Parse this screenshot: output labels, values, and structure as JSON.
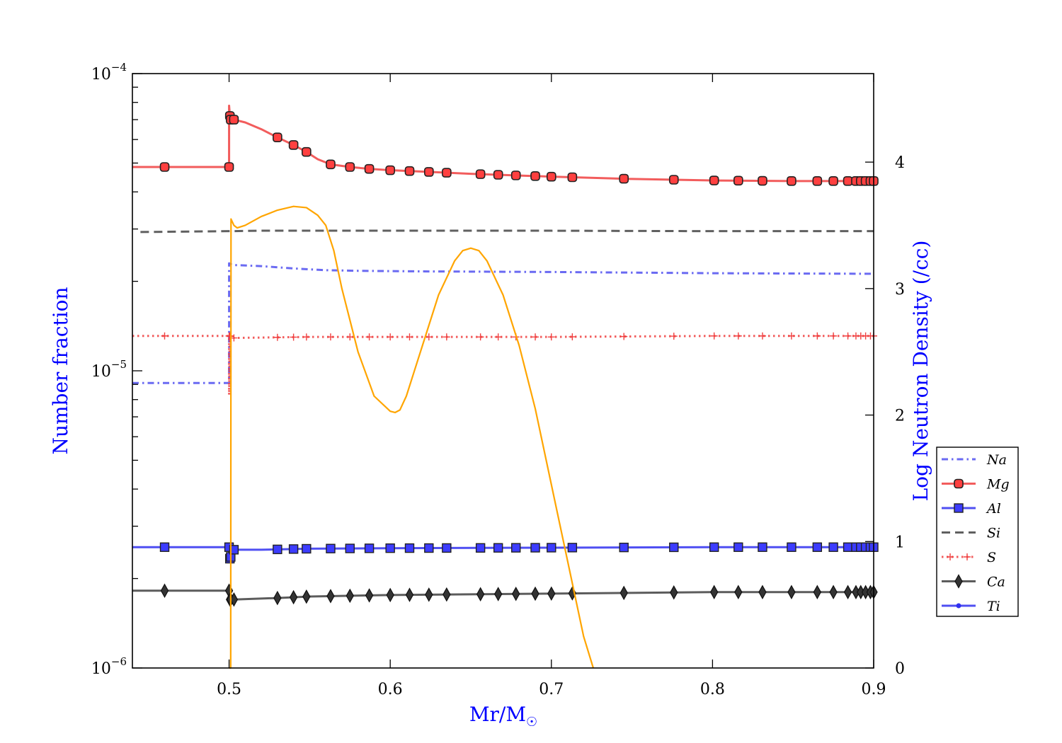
{
  "chart_data": {
    "type": "line",
    "xlabel": "Mr/M",
    "xlabel_symbol": "☉",
    "ylabel_left": "Number fraction",
    "ylabel_right": "Log Neutron Density (/cc)",
    "axis_label_color": "#0000ff",
    "xlim": [
      0.44,
      0.9
    ],
    "ylim_left": [
      1e-06,
      0.0001
    ],
    "yscale_left": "log",
    "ylim_right": [
      0,
      4.7
    ],
    "xticks": [
      0.5,
      0.6,
      0.7,
      0.8,
      0.9
    ],
    "xtick_labels": [
      "0.5",
      "0.6",
      "0.7",
      "0.8",
      "0.9"
    ],
    "yticks_left": [
      {
        "base": "10",
        "exp": "−4",
        "value": 0.0001
      },
      {
        "base": "10",
        "exp": "−5",
        "value": 1e-05
      },
      {
        "base": "10",
        "exp": "−6",
        "value": 1e-06
      }
    ],
    "yticks_right": [
      0,
      1,
      2,
      3,
      4
    ],
    "ytick_labels_right": [
      "0",
      "1",
      "2",
      "3",
      "4"
    ],
    "legend_position": "right-outside",
    "grid": false,
    "marker_x": [
      0.46,
      0.5,
      0.5005,
      0.501,
      0.503,
      0.53,
      0.54,
      0.548,
      0.563,
      0.575,
      0.587,
      0.6,
      0.612,
      0.624,
      0.635,
      0.656,
      0.667,
      0.678,
      0.69,
      0.7,
      0.713,
      0.745,
      0.776,
      0.801,
      0.816,
      0.831,
      0.849,
      0.865,
      0.875,
      0.884,
      0.889,
      0.892,
      0.895,
      0.898,
      0.9
    ],
    "series": [
      {
        "name": "Na",
        "axis": "left",
        "color": "#5050f0",
        "style": "dashdot",
        "marker": "none",
        "x": [
          0.44,
          0.5,
          0.5,
          0.502,
          0.52,
          0.54,
          0.56,
          0.58,
          0.62,
          0.7,
          0.8,
          0.9
        ],
        "y": [
          9.1e-06,
          9.1e-06,
          2.3e-05,
          2.27e-05,
          2.25e-05,
          2.21e-05,
          2.18e-05,
          2.17e-05,
          2.16e-05,
          2.15e-05,
          2.13e-05,
          2.12e-05
        ]
      },
      {
        "name": "Mg",
        "axis": "left",
        "color": "#f04040",
        "style": "solid",
        "marker": "circle",
        "x": [
          0.44,
          0.46,
          0.5,
          0.5,
          0.5005,
          0.501,
          0.503,
          0.51,
          0.52,
          0.53,
          0.54,
          0.548,
          0.555,
          0.563,
          0.575,
          0.587,
          0.6,
          0.62,
          0.65,
          0.7,
          0.75,
          0.8,
          0.85,
          0.9
        ],
        "y": [
          4.85e-05,
          4.85e-05,
          4.85e-05,
          7.8e-05,
          7.2e-05,
          7e-05,
          7e-05,
          6.85e-05,
          6.5e-05,
          6.1e-05,
          5.75e-05,
          5.45e-05,
          5.15e-05,
          4.95e-05,
          4.85e-05,
          4.78e-05,
          4.73e-05,
          4.68e-05,
          4.6e-05,
          4.5e-05,
          4.42e-05,
          4.37e-05,
          4.35e-05,
          4.35e-05
        ]
      },
      {
        "name": "Al",
        "axis": "left",
        "color": "#3030f0",
        "style": "solid",
        "marker": "square",
        "x": [
          0.44,
          0.5,
          0.5,
          0.503,
          0.52,
          0.55,
          0.6,
          0.7,
          0.8,
          0.9
        ],
        "y": [
          2.55e-06,
          2.55e-06,
          2.3e-06,
          2.5e-06,
          2.5e-06,
          2.52e-06,
          2.53e-06,
          2.54e-06,
          2.55e-06,
          2.55e-06
        ]
      },
      {
        "name": "Si",
        "axis": "left",
        "color": "#444444",
        "style": "dashed",
        "marker": "none",
        "x": [
          0.445,
          0.5,
          0.52,
          0.6,
          0.7,
          0.8,
          0.9
        ],
        "y": [
          2.93e-05,
          2.95e-05,
          2.96e-05,
          2.96e-05,
          2.96e-05,
          2.95e-05,
          2.95e-05
        ]
      },
      {
        "name": "S",
        "axis": "left",
        "color": "#f04040",
        "style": "dotted",
        "marker": "plus",
        "x": [
          0.44,
          0.5,
          0.5,
          0.5005,
          0.503,
          0.55,
          0.6,
          0.7,
          0.8,
          0.9
        ],
        "y": [
          1.31e-05,
          1.31e-05,
          8.3e-06,
          1.31e-05,
          1.29e-05,
          1.3e-05,
          1.3e-05,
          1.3e-05,
          1.31e-05,
          1.31e-05
        ]
      },
      {
        "name": "Ca",
        "axis": "left",
        "color": "#404040",
        "style": "solid",
        "marker": "diamond",
        "x": [
          0.44,
          0.5,
          0.5,
          0.503,
          0.53,
          0.55,
          0.6,
          0.7,
          0.8,
          0.9
        ],
        "y": [
          1.82e-06,
          1.82e-06,
          1.7e-06,
          1.7e-06,
          1.72e-06,
          1.74e-06,
          1.76e-06,
          1.78e-06,
          1.8e-06,
          1.8e-06
        ]
      },
      {
        "name": "Ti",
        "axis": "left",
        "color": "#3030f0",
        "style": "solid",
        "marker": "dot",
        "x": [],
        "y": []
      },
      {
        "name": "",
        "axis": "right",
        "color": "#ffa500",
        "style": "solid",
        "marker": "none",
        "x": [
          0.5,
          0.501,
          0.5012,
          0.503,
          0.505,
          0.51,
          0.52,
          0.53,
          0.54,
          0.548,
          0.555,
          0.56,
          0.565,
          0.57,
          0.58,
          0.59,
          0.6,
          0.603,
          0.606,
          0.61,
          0.62,
          0.63,
          0.64,
          0.645,
          0.65,
          0.655,
          0.66,
          0.67,
          0.68,
          0.69,
          0.7,
          0.71,
          0.72,
          0.726
        ],
        "y": [
          0.0,
          0.0,
          3.55,
          3.5,
          3.48,
          3.5,
          3.57,
          3.62,
          3.65,
          3.64,
          3.58,
          3.5,
          3.3,
          3.0,
          2.5,
          2.15,
          2.03,
          2.02,
          2.04,
          2.15,
          2.55,
          2.95,
          3.22,
          3.3,
          3.32,
          3.3,
          3.22,
          2.95,
          2.55,
          2.05,
          1.45,
          0.85,
          0.25,
          0.0
        ]
      }
    ]
  }
}
